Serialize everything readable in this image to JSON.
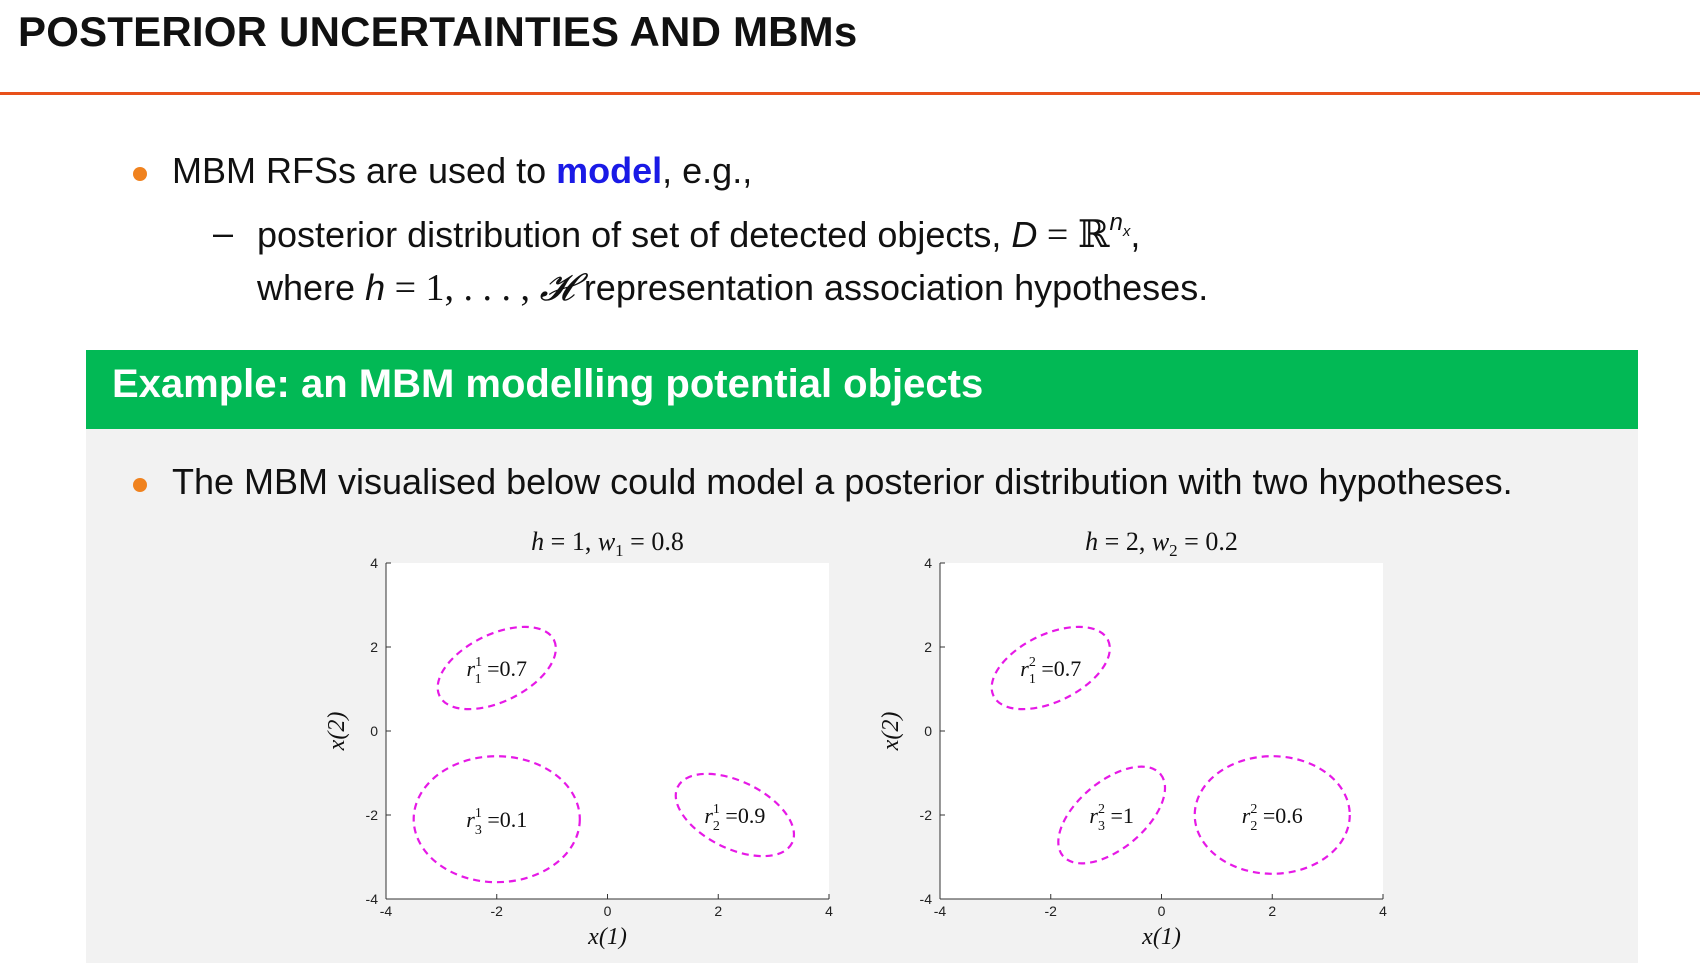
{
  "header": {
    "title": "POSTERIOR UNCERTAINTIES AND MBMs",
    "rule_color": "#e8501a"
  },
  "content": {
    "bullet1": {
      "text_before": "MBM RFSs are used to ",
      "keyword": "model",
      "text_after": ", e.g.,"
    },
    "sub_bullet": {
      "dash": "–",
      "line1_text": "posterior distribution of set of detected objects, ",
      "line1_math_D": "D",
      "line1_math_eq": " = ",
      "line1_math_R": "ℝ",
      "line1_math_sup": "n",
      "line1_math_sup_sub": "x",
      "line1_end": ",",
      "line2_text_before": "where ",
      "line2_math_h": "h",
      "line2_math_range": " = 1, . . . , ",
      "line2_math_H": "𝓗",
      "line2_text_after": " representation association hypotheses."
    }
  },
  "example_block": {
    "title": "Example: an MBM modelling potential objects",
    "header_color": "#02b955",
    "bullet": "The MBM visualised below could model a posterior distribution with two hypotheses."
  },
  "chart_data": [
    {
      "type": "scatter",
      "title": "h = 1, w₁ = 0.8",
      "title_parts": {
        "h_label": "h",
        "h_val": " = 1, ",
        "w_label": "w",
        "w_sub": "1",
        "w_val": " = 0.8"
      },
      "xlabel": "x(1)",
      "ylabel": "x(2)",
      "xlim": [
        -4,
        4
      ],
      "ylim": [
        -4,
        4
      ],
      "xticks": [
        "-4",
        "-2",
        "0",
        "2",
        "4"
      ],
      "yticks": [
        "4",
        "2",
        "0",
        "-2",
        "-4"
      ],
      "ellipse_color": "#e619e6",
      "ellipses": [
        {
          "label_r": "r",
          "label_sup": "1",
          "label_sub": "1",
          "label_val": "=0.7",
          "cx": -2.0,
          "cy": 1.5,
          "rx": 1.15,
          "ry": 0.8,
          "angle_deg": -26
        },
        {
          "label_r": "r",
          "label_sup": "1",
          "label_sub": "3",
          "label_val": "=0.1",
          "cx": -2.0,
          "cy": -2.1,
          "rx": 1.5,
          "ry": 1.5,
          "angle_deg": 0
        },
        {
          "label_r": "r",
          "label_sup": "1",
          "label_sub": "2",
          "label_val": "=0.9",
          "cx": 2.3,
          "cy": -2.0,
          "rx": 1.15,
          "ry": 0.8,
          "angle_deg": 26
        }
      ]
    },
    {
      "type": "scatter",
      "title": "h = 2, w₂ = 0.2",
      "title_parts": {
        "h_label": "h",
        "h_val": " = 2, ",
        "w_label": "w",
        "w_sub": "2",
        "w_val": " = 0.2"
      },
      "xlabel": "x(1)",
      "ylabel": "x(2)",
      "xlim": [
        -4,
        4
      ],
      "ylim": [
        -4,
        4
      ],
      "xticks": [
        "-4",
        "-2",
        "0",
        "2",
        "4"
      ],
      "yticks": [
        "4",
        "2",
        "0",
        "-2",
        "-4"
      ],
      "ellipse_color": "#e619e6",
      "ellipses": [
        {
          "label_r": "r",
          "label_sup": "2",
          "label_sub": "1",
          "label_val": "=0.7",
          "cx": -2.0,
          "cy": 1.5,
          "rx": 1.15,
          "ry": 0.8,
          "angle_deg": -26
        },
        {
          "label_r": "r",
          "label_sup": "2",
          "label_sub": "3",
          "label_val": "=1",
          "cx": -0.9,
          "cy": -2.0,
          "rx": 1.15,
          "ry": 0.8,
          "angle_deg": -40
        },
        {
          "label_r": "r",
          "label_sup": "2",
          "label_sub": "2",
          "label_val": "=0.6",
          "cx": 2.0,
          "cy": -2.0,
          "rx": 1.4,
          "ry": 1.4,
          "angle_deg": 0
        }
      ]
    }
  ]
}
